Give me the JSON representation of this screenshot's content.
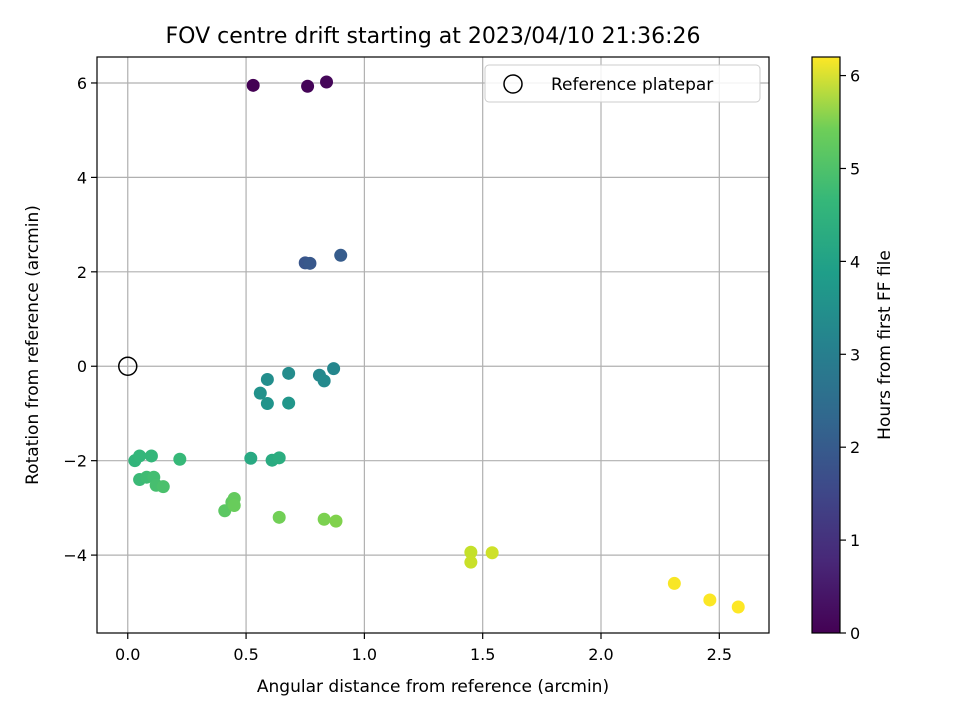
{
  "chart_data": {
    "type": "scatter",
    "title": "FOV centre drift starting at 2023/04/10 21:36:26",
    "xlabel": "Angular distance from reference (arcmin)",
    "ylabel": "Rotation from reference (arcmin)",
    "xlim": [
      -0.13,
      2.71
    ],
    "ylim": [
      -5.65,
      6.55
    ],
    "xticks": [
      0.0,
      0.5,
      1.0,
      1.5,
      2.0,
      2.5
    ],
    "xtick_labels": [
      "0.0",
      "0.5",
      "1.0",
      "1.5",
      "2.0",
      "2.5"
    ],
    "yticks": [
      -4,
      -2,
      0,
      2,
      4,
      6
    ],
    "ytick_labels": [
      "−4",
      "−2",
      "0",
      "2",
      "4",
      "6"
    ],
    "grid": true,
    "legend": {
      "position": "top-right",
      "entries": [
        "Reference platepar"
      ]
    },
    "reference_point": {
      "x": 0,
      "y": 0
    },
    "colorbar": {
      "label": "Hours from first FF file",
      "range": [
        0,
        6.2
      ],
      "ticks": [
        0,
        1,
        2,
        3,
        4,
        5,
        6
      ],
      "tick_labels": [
        "0",
        "1",
        "2",
        "3",
        "4",
        "5",
        "6"
      ],
      "colormap": "viridis"
    },
    "points": [
      {
        "x": 0.53,
        "y": 5.95,
        "c": 0.0
      },
      {
        "x": 0.76,
        "y": 5.93,
        "c": 0.05
      },
      {
        "x": 0.84,
        "y": 6.02,
        "c": 0.1
      },
      {
        "x": 0.75,
        "y": 2.19,
        "c": 1.65
      },
      {
        "x": 0.77,
        "y": 2.18,
        "c": 1.7
      },
      {
        "x": 0.9,
        "y": 2.35,
        "c": 1.8
      },
      {
        "x": 0.87,
        "y": -0.05,
        "c": 2.85
      },
      {
        "x": 0.81,
        "y": -0.19,
        "c": 2.9
      },
      {
        "x": 0.83,
        "y": -0.31,
        "c": 2.95
      },
      {
        "x": 0.68,
        "y": -0.15,
        "c": 3.0
      },
      {
        "x": 0.59,
        "y": -0.28,
        "c": 3.05
      },
      {
        "x": 0.56,
        "y": -0.57,
        "c": 3.15
      },
      {
        "x": 0.59,
        "y": -0.79,
        "c": 3.2
      },
      {
        "x": 0.68,
        "y": -0.78,
        "c": 3.25
      },
      {
        "x": 0.52,
        "y": -1.95,
        "c": 3.75
      },
      {
        "x": 0.61,
        "y": -1.99,
        "c": 3.8
      },
      {
        "x": 0.64,
        "y": -1.94,
        "c": 3.85
      },
      {
        "x": 0.03,
        "y": -2.0,
        "c": 4.05
      },
      {
        "x": 0.05,
        "y": -1.9,
        "c": 4.1
      },
      {
        "x": 0.1,
        "y": -1.9,
        "c": 4.1
      },
      {
        "x": 0.22,
        "y": -1.97,
        "c": 4.15
      },
      {
        "x": 0.05,
        "y": -2.4,
        "c": 4.2
      },
      {
        "x": 0.08,
        "y": -2.35,
        "c": 4.25
      },
      {
        "x": 0.11,
        "y": -2.35,
        "c": 4.3
      },
      {
        "x": 0.12,
        "y": -2.52,
        "c": 4.35
      },
      {
        "x": 0.15,
        "y": -2.55,
        "c": 4.4
      },
      {
        "x": 0.41,
        "y": -3.06,
        "c": 4.6
      },
      {
        "x": 0.44,
        "y": -2.88,
        "c": 4.65
      },
      {
        "x": 0.45,
        "y": -2.8,
        "c": 4.7
      },
      {
        "x": 0.45,
        "y": -2.95,
        "c": 4.75
      },
      {
        "x": 0.64,
        "y": -3.2,
        "c": 4.85
      },
      {
        "x": 0.83,
        "y": -3.24,
        "c": 4.95
      },
      {
        "x": 0.88,
        "y": -3.28,
        "c": 5.0
      },
      {
        "x": 1.45,
        "y": -3.94,
        "c": 5.65
      },
      {
        "x": 1.45,
        "y": -4.15,
        "c": 5.7
      },
      {
        "x": 1.54,
        "y": -3.95,
        "c": 5.75
      },
      {
        "x": 2.31,
        "y": -4.6,
        "c": 6.15
      },
      {
        "x": 2.46,
        "y": -4.95,
        "c": 6.18
      },
      {
        "x": 2.58,
        "y": -5.1,
        "c": 6.2
      }
    ]
  }
}
